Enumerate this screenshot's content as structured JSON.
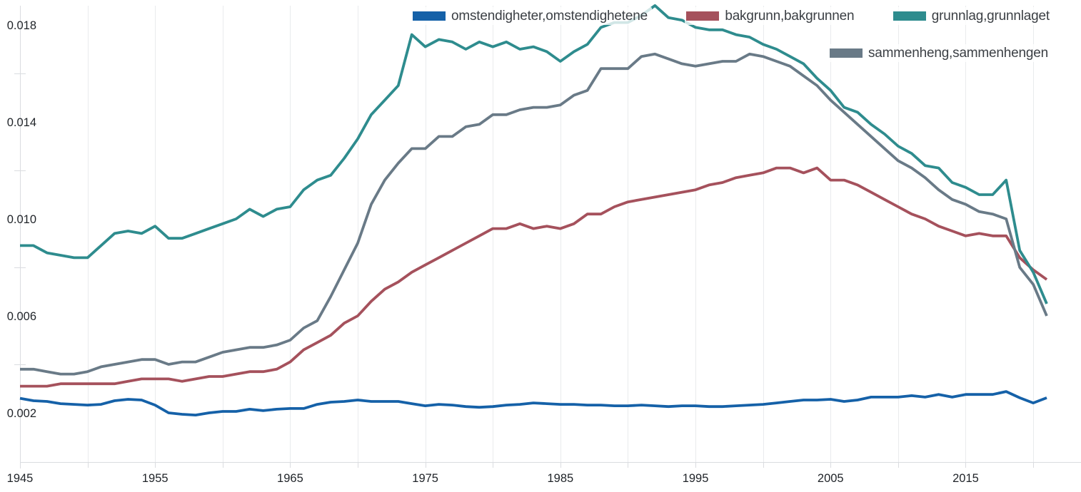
{
  "chart_data": {
    "type": "line",
    "title": "",
    "xlabel": "",
    "ylabel": "",
    "x_start_year": 1945,
    "x_end_year": 2021,
    "ylim": [
      0,
      0.019
    ],
    "grid": "vertical-only",
    "legend_position": "top-right, two rows, translucent background",
    "y_tick_labels": [
      "0.018",
      "0.014",
      "0.010",
      "0.006",
      "0.002"
    ],
    "y_tick_values": [
      0.018,
      0.014,
      0.01,
      0.006,
      0.002
    ],
    "y_minor_tick_values": [
      0.016,
      0.012,
      0.008,
      0.004
    ],
    "x_tick_labels": [
      "1945",
      "1955",
      "1965",
      "1975",
      "1985",
      "1995",
      "2005",
      "2015"
    ],
    "x_tick_values": [
      1945,
      1955,
      1965,
      1975,
      1985,
      1995,
      2005,
      2015
    ],
    "x_gridline_step_years": 5,
    "series": [
      {
        "label": "omstendigheter,omstendighetene",
        "color": "#1561a8",
        "z": 1,
        "values": [
          0.0026,
          0.0025,
          0.00247,
          0.00238,
          0.00235,
          0.00232,
          0.00235,
          0.0025,
          0.00256,
          0.00253,
          0.00232,
          0.002,
          0.00194,
          0.00191,
          0.002,
          0.00206,
          0.00206,
          0.00215,
          0.00209,
          0.00215,
          0.00218,
          0.00218,
          0.00235,
          0.00244,
          0.00247,
          0.00253,
          0.00247,
          0.00247,
          0.00247,
          0.00238,
          0.00229,
          0.00235,
          0.00232,
          0.00226,
          0.00223,
          0.00226,
          0.00232,
          0.00235,
          0.00241,
          0.00238,
          0.00235,
          0.00235,
          0.00232,
          0.00232,
          0.00229,
          0.00229,
          0.00232,
          0.00229,
          0.00226,
          0.00229,
          0.00229,
          0.00226,
          0.00226,
          0.00229,
          0.00232,
          0.00235,
          0.00241,
          0.00247,
          0.00253,
          0.00253,
          0.00256,
          0.00247,
          0.00253,
          0.00265,
          0.00265,
          0.00265,
          0.00271,
          0.00265,
          0.00276,
          0.00265,
          0.00276,
          0.00276,
          0.00276,
          0.00288,
          0.00262,
          0.00241,
          0.00262
        ]
      },
      {
        "label": "bakgrunn,bakgrunnen",
        "color": "#a5515c",
        "z": 2,
        "values": [
          0.0031,
          0.0031,
          0.0031,
          0.0032,
          0.0032,
          0.0032,
          0.0032,
          0.0032,
          0.0033,
          0.0034,
          0.0034,
          0.0034,
          0.0033,
          0.0034,
          0.0035,
          0.0035,
          0.0036,
          0.0037,
          0.0037,
          0.0038,
          0.0041,
          0.0046,
          0.0049,
          0.0052,
          0.0057,
          0.006,
          0.0066,
          0.0071,
          0.0074,
          0.0078,
          0.0081,
          0.0084,
          0.0087,
          0.009,
          0.0093,
          0.0096,
          0.0096,
          0.0098,
          0.0096,
          0.0097,
          0.0096,
          0.0098,
          0.0102,
          0.0102,
          0.0105,
          0.0107,
          0.0108,
          0.0109,
          0.011,
          0.0111,
          0.0112,
          0.0114,
          0.0115,
          0.0117,
          0.0118,
          0.0119,
          0.0121,
          0.0121,
          0.0119,
          0.0121,
          0.0116,
          0.0116,
          0.0114,
          0.0111,
          0.0108,
          0.0105,
          0.0102,
          0.01,
          0.0097,
          0.0095,
          0.0093,
          0.0094,
          0.0093,
          0.0093,
          0.0084,
          0.0079,
          0.0075
        ]
      },
      {
        "label": "grunnlag,grunnlaget",
        "color": "#2e8c8e",
        "z": 4,
        "values": [
          0.0089,
          0.0089,
          0.0086,
          0.0085,
          0.0084,
          0.0084,
          0.0089,
          0.0094,
          0.0095,
          0.0094,
          0.0097,
          0.0092,
          0.0092,
          0.0094,
          0.0096,
          0.0098,
          0.01,
          0.0104,
          0.0101,
          0.0104,
          0.0105,
          0.0112,
          0.0116,
          0.0118,
          0.0125,
          0.0133,
          0.0143,
          0.0149,
          0.0155,
          0.0176,
          0.0171,
          0.0174,
          0.0173,
          0.017,
          0.0173,
          0.0171,
          0.0173,
          0.017,
          0.0171,
          0.0169,
          0.0165,
          0.0169,
          0.0172,
          0.0179,
          0.0181,
          0.0181,
          0.0184,
          0.0188,
          0.0183,
          0.0182,
          0.0179,
          0.0178,
          0.0178,
          0.0176,
          0.0175,
          0.0172,
          0.017,
          0.0167,
          0.0164,
          0.0158,
          0.0153,
          0.0146,
          0.0144,
          0.0139,
          0.0135,
          0.013,
          0.0127,
          0.0122,
          0.0121,
          0.0115,
          0.0113,
          0.011,
          0.011,
          0.0116,
          0.0087,
          0.0078,
          0.0065
        ]
      },
      {
        "label": "sammenheng,sammenhengen",
        "color": "#697a87",
        "z": 3,
        "values": [
          0.0038,
          0.0038,
          0.0037,
          0.0036,
          0.0036,
          0.0037,
          0.0039,
          0.004,
          0.0041,
          0.0042,
          0.0042,
          0.004,
          0.0041,
          0.0041,
          0.0043,
          0.0045,
          0.0046,
          0.0047,
          0.0047,
          0.0048,
          0.005,
          0.0055,
          0.0058,
          0.0068,
          0.0079,
          0.009,
          0.0106,
          0.0116,
          0.0123,
          0.0129,
          0.0129,
          0.0134,
          0.0134,
          0.0138,
          0.0139,
          0.0143,
          0.0143,
          0.0145,
          0.0146,
          0.0146,
          0.0147,
          0.0151,
          0.0153,
          0.0162,
          0.0162,
          0.0162,
          0.0167,
          0.0168,
          0.0166,
          0.0164,
          0.0163,
          0.0164,
          0.0165,
          0.0165,
          0.0168,
          0.0167,
          0.0165,
          0.0163,
          0.0159,
          0.0155,
          0.0149,
          0.0144,
          0.0139,
          0.0134,
          0.0129,
          0.0124,
          0.0121,
          0.0117,
          0.0112,
          0.0108,
          0.0106,
          0.0103,
          0.0102,
          0.01,
          0.008,
          0.0073,
          0.006
        ]
      }
    ],
    "colors": {
      "gridline": "#e9ebed",
      "axis_line": "#dadce0",
      "tick_label": "#1f2328",
      "legend_text": "#3c4045",
      "background": "#ffffff"
    }
  }
}
